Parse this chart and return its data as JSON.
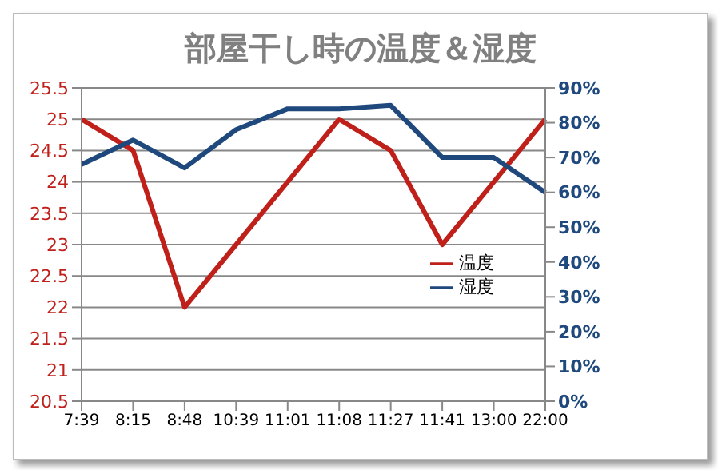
{
  "chart_data": {
    "type": "line",
    "title": "部屋干し時の温度＆湿度",
    "categories": [
      "7:39",
      "8:15",
      "8:48",
      "10:39",
      "11:01",
      "11:08",
      "11:27",
      "11:41",
      "13:00",
      "22:00"
    ],
    "series": [
      {
        "name": "温度",
        "color": "#c0201a",
        "values": [
          25,
          24.5,
          22,
          23,
          24,
          25,
          24.5,
          23,
          24,
          25
        ]
      },
      {
        "name": "湿度",
        "color": "#1f497d",
        "axis": "y2",
        "values": [
          68,
          75,
          67,
          78,
          84,
          84,
          85,
          70,
          70,
          60
        ]
      }
    ],
    "ylim": [
      20.5,
      25.5
    ],
    "yticks": [
      20.5,
      21,
      21.5,
      22,
      22.5,
      23,
      23.5,
      24,
      24.5,
      25,
      25.5
    ],
    "y2lim": [
      0,
      90
    ],
    "y2ticks": [
      {
        "value": 0,
        "label": "0%"
      },
      {
        "value": 10,
        "label": "10%"
      },
      {
        "value": 20,
        "label": "20%"
      },
      {
        "value": 30,
        "label": "30%"
      },
      {
        "value": 40,
        "label": "40%"
      },
      {
        "value": 50,
        "label": "50%"
      },
      {
        "value": 60,
        "label": "60%"
      },
      {
        "value": 70,
        "label": "70%"
      },
      {
        "value": 80,
        "label": "80%"
      },
      {
        "value": 90,
        "label": "90%"
      }
    ],
    "grid": "y",
    "legend": "right",
    "marker": "none",
    "line_style": "solid"
  }
}
